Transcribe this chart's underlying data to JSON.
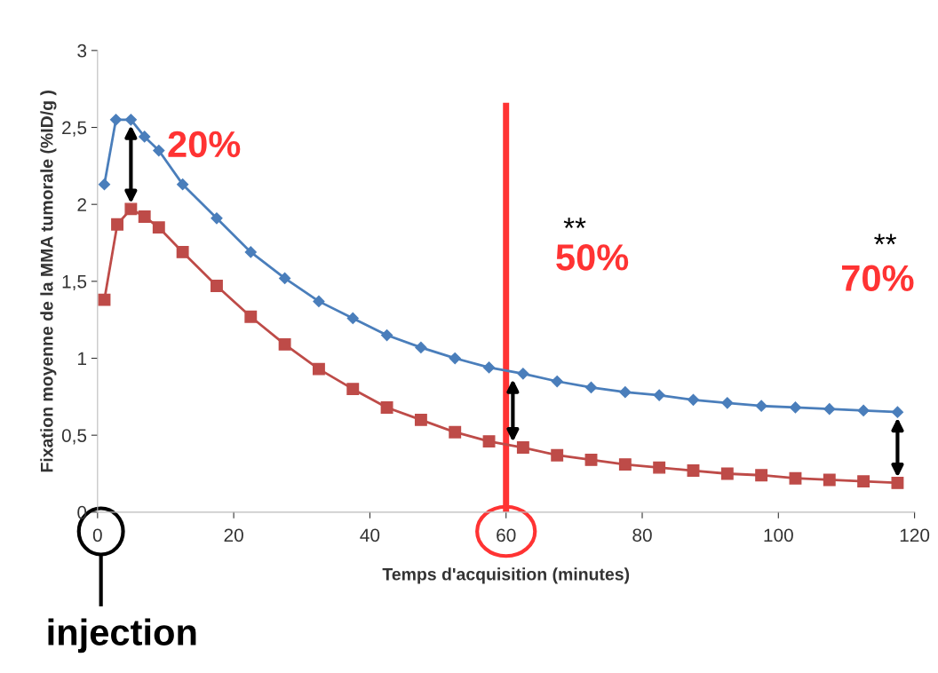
{
  "chart_data": {
    "type": "line",
    "xlabel": "Temps d'acquisition (minutes)",
    "ylabel": "Fixation moyenne de la MMA tumorale (%ID/g )",
    "xlim": [
      0,
      120
    ],
    "xticks": [
      0,
      20,
      40,
      60,
      80,
      100,
      120
    ],
    "ylim": [
      0,
      3
    ],
    "yticks": [
      0,
      {
        "value": 0.5,
        "label": "0,5"
      },
      1,
      {
        "value": 1.5,
        "label": "1,5"
      },
      2,
      {
        "value": 2.5,
        "label": "2,5"
      },
      3
    ],
    "grid": false,
    "legend": false,
    "line_style": "solid",
    "series": [
      {
        "color": "#4a7ebb",
        "marker": "diamond",
        "x": [
          1,
          2.7,
          4.9,
          6.9,
          9,
          12.5,
          17.5,
          22.5,
          27.5,
          32.5,
          37.5,
          42.5,
          47.5,
          52.5,
          57.5,
          62.5,
          67.5,
          72.5,
          77.5,
          82.5,
          87.5,
          92.5,
          97.5,
          102.5,
          107.5,
          112.5,
          117.5
        ],
        "values": [
          2.13,
          2.55,
          2.55,
          2.44,
          2.35,
          2.13,
          1.91,
          1.69,
          1.52,
          1.37,
          1.26,
          1.15,
          1.07,
          1.0,
          0.94,
          0.9,
          0.85,
          0.81,
          0.78,
          0.76,
          0.73,
          0.71,
          0.69,
          0.68,
          0.67,
          0.66,
          0.65
        ]
      },
      {
        "color": "#be4b48",
        "marker": "square",
        "x": [
          1,
          2.9,
          4.9,
          6.9,
          9,
          12.5,
          17.5,
          22.5,
          27.5,
          32.5,
          37.5,
          42.5,
          47.5,
          52.5,
          57.5,
          62.5,
          67.5,
          72.5,
          77.5,
          82.5,
          87.5,
          92.5,
          97.5,
          102.5,
          107.5,
          112.5,
          117.5
        ],
        "values": [
          1.38,
          1.87,
          1.97,
          1.92,
          1.85,
          1.69,
          1.47,
          1.27,
          1.09,
          0.93,
          0.8,
          0.68,
          0.6,
          0.52,
          0.46,
          0.42,
          0.37,
          0.34,
          0.31,
          0.29,
          0.27,
          0.25,
          0.24,
          0.22,
          0.21,
          0.2,
          0.19
        ]
      }
    ],
    "ref_lines": [
      {
        "axis": "x",
        "value": 60,
        "color": "#ff3333"
      }
    ],
    "annotations": [
      "20%",
      "50%",
      "70%",
      "**",
      "**",
      "injection"
    ]
  }
}
